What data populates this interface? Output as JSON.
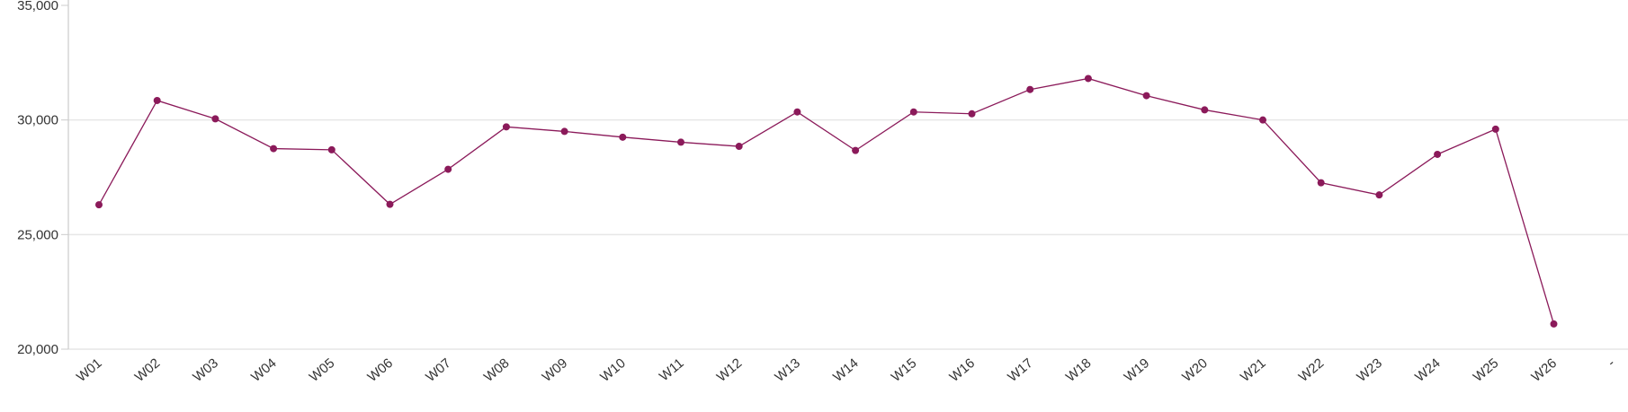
{
  "chart_data": {
    "type": "line",
    "title": "",
    "xlabel": "",
    "ylabel": "",
    "ylim": [
      20000,
      35000
    ],
    "yticks": [
      20000,
      25000,
      30000,
      35000
    ],
    "ytick_labels": [
      "20,000",
      "25,000",
      "30,000",
      "35,000"
    ],
    "grid": "horizontal",
    "categories": [
      "W01",
      "W02",
      "W03",
      "W04",
      "W05",
      "W06",
      "W07",
      "W08",
      "W09",
      "W10",
      "W11",
      "W12",
      "W13",
      "W14",
      "W15",
      "W16",
      "W17",
      "W18",
      "W19",
      "W20",
      "W21",
      "W22",
      "W23",
      "W24",
      "W25",
      "W26",
      "-"
    ],
    "series": [
      {
        "color": "#8b1a5a",
        "markers": true,
        "values": [
          26300,
          30850,
          30050,
          28750,
          28700,
          26320,
          27850,
          29700,
          29500,
          29250,
          29030,
          28850,
          30350,
          28670,
          30350,
          30270,
          31330,
          31810,
          31060,
          30440,
          30000,
          27260,
          26730,
          28500,
          29600,
          21100,
          null
        ]
      }
    ]
  }
}
